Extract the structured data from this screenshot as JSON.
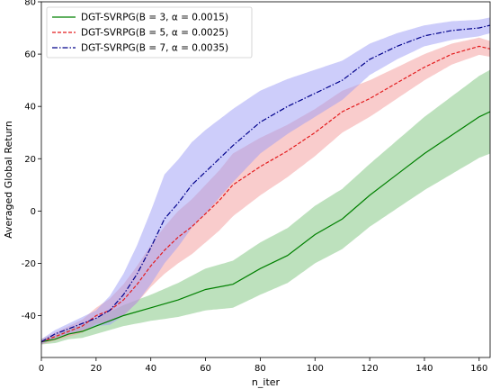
{
  "chart_data": {
    "type": "line",
    "title": "",
    "xlabel": "n_iter",
    "ylabel": "Averaged Global Return",
    "xlim": [
      0,
      164
    ],
    "ylim": [
      -56,
      80
    ],
    "xticks": [
      0,
      20,
      40,
      60,
      80,
      100,
      120,
      140,
      160
    ],
    "yticks": [
      -40,
      -20,
      0,
      20,
      40,
      60,
      80
    ],
    "grid": false,
    "legend_position": "top-left",
    "series": [
      {
        "name": "DGT-SVRPG(B = 3, α = 0.0015)",
        "color": "#008000",
        "band_color": "#7cc47c",
        "style": "solid",
        "points": [
          [
            0,
            -50
          ],
          [
            5,
            -49
          ],
          [
            10,
            -47
          ],
          [
            15,
            -46
          ],
          [
            20,
            -44
          ],
          [
            25,
            -42
          ],
          [
            30,
            -40
          ],
          [
            40,
            -37
          ],
          [
            50,
            -34
          ],
          [
            60,
            -30
          ],
          [
            70,
            -28
          ],
          [
            80,
            -22
          ],
          [
            90,
            -17
          ],
          [
            100,
            -9
          ],
          [
            110,
            -3
          ],
          [
            120,
            6
          ],
          [
            130,
            14
          ],
          [
            140,
            22
          ],
          [
            150,
            29
          ],
          [
            160,
            36
          ],
          [
            164,
            38
          ]
        ],
        "band_half_width": [
          [
            0,
            1
          ],
          [
            20,
            3
          ],
          [
            40,
            5
          ],
          [
            60,
            8
          ],
          [
            80,
            10
          ],
          [
            100,
            11
          ],
          [
            120,
            12
          ],
          [
            140,
            14
          ],
          [
            164,
            16
          ]
        ]
      },
      {
        "name": "DGT-SVRPG(B = 5, α = 0.0025)",
        "color": "#e31a1c",
        "band_color": "#f49a9a",
        "style": "dashed",
        "points": [
          [
            0,
            -50
          ],
          [
            5,
            -48
          ],
          [
            10,
            -46
          ],
          [
            15,
            -44
          ],
          [
            20,
            -40
          ],
          [
            25,
            -38
          ],
          [
            30,
            -34
          ],
          [
            35,
            -28
          ],
          [
            40,
            -21
          ],
          [
            45,
            -15
          ],
          [
            50,
            -10
          ],
          [
            55,
            -6
          ],
          [
            60,
            -1
          ],
          [
            65,
            4
          ],
          [
            70,
            10
          ],
          [
            80,
            17
          ],
          [
            90,
            23
          ],
          [
            100,
            30
          ],
          [
            110,
            38
          ],
          [
            120,
            43
          ],
          [
            130,
            49
          ],
          [
            140,
            55
          ],
          [
            150,
            60
          ],
          [
            160,
            63
          ],
          [
            164,
            62
          ]
        ],
        "band_half_width": [
          [
            0,
            1
          ],
          [
            20,
            3
          ],
          [
            30,
            6
          ],
          [
            50,
            10
          ],
          [
            70,
            12
          ],
          [
            90,
            10
          ],
          [
            110,
            8
          ],
          [
            130,
            6
          ],
          [
            150,
            4
          ],
          [
            164,
            3
          ]
        ]
      },
      {
        "name": "DGT-SVRPG(B = 7, α = 0.0035)",
        "color": "#00008b",
        "band_color": "#9b9bf5",
        "style": "dashdot",
        "points": [
          [
            0,
            -50
          ],
          [
            5,
            -47
          ],
          [
            10,
            -45
          ],
          [
            15,
            -43
          ],
          [
            20,
            -41
          ],
          [
            25,
            -38
          ],
          [
            30,
            -32
          ],
          [
            35,
            -24
          ],
          [
            40,
            -14
          ],
          [
            45,
            -3
          ],
          [
            50,
            3
          ],
          [
            55,
            10
          ],
          [
            60,
            15
          ],
          [
            65,
            20
          ],
          [
            70,
            25
          ],
          [
            80,
            34
          ],
          [
            90,
            40
          ],
          [
            100,
            45
          ],
          [
            110,
            50
          ],
          [
            120,
            58
          ],
          [
            130,
            63
          ],
          [
            140,
            67
          ],
          [
            150,
            69
          ],
          [
            160,
            70
          ],
          [
            164,
            71
          ]
        ],
        "band_half_width": [
          [
            0,
            1
          ],
          [
            20,
            3
          ],
          [
            30,
            8
          ],
          [
            45,
            17
          ],
          [
            60,
            16
          ],
          [
            80,
            12
          ],
          [
            100,
            9
          ],
          [
            120,
            6
          ],
          [
            140,
            4
          ],
          [
            164,
            3
          ]
        ]
      }
    ]
  }
}
